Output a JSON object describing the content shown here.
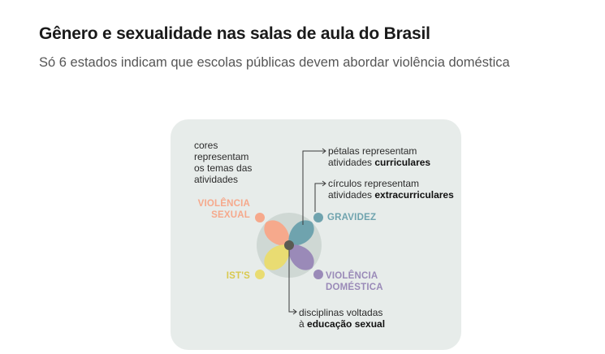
{
  "header": {
    "title": "Gênero e sexualidade nas salas de aula do Brasil",
    "subtitle": "Só 6 estados indicam que escolas públicas devem abordar violência doméstica"
  },
  "legend": {
    "colors_note": [
      "cores",
      "representam",
      "os temas das",
      "atividades"
    ],
    "petals": {
      "line1": "pétalas representam",
      "line2_prefix": "atividades ",
      "line2_bold": "curriculares"
    },
    "circles": {
      "line1": "círculos representam",
      "line2_prefix": "atividades ",
      "line2_bold": "extracurriculares"
    },
    "center": {
      "line1": "disciplinas voltadas",
      "line2_prefix": "à ",
      "line2_bold": "educação sexual"
    }
  },
  "themes": {
    "violencia_sexual": {
      "line1": "VIOLÊNCIA",
      "line2": "SEXUAL",
      "color": "#f6a98c"
    },
    "gravidez": {
      "label": "GRAVIDEZ",
      "color": "#6fa3ae"
    },
    "ists": {
      "label": "IST'S",
      "color": "#e9dc72"
    },
    "violencia_domestica": {
      "line1": "VIOLÊNCIA",
      "line2": "DOMÉSTICA",
      "color": "#9a8ab8"
    }
  },
  "colors": {
    "card_bg": "#e7ecea",
    "disc": "#cfd8d4",
    "center_dot": "#5a5a52",
    "line": "#3a3a3a"
  }
}
